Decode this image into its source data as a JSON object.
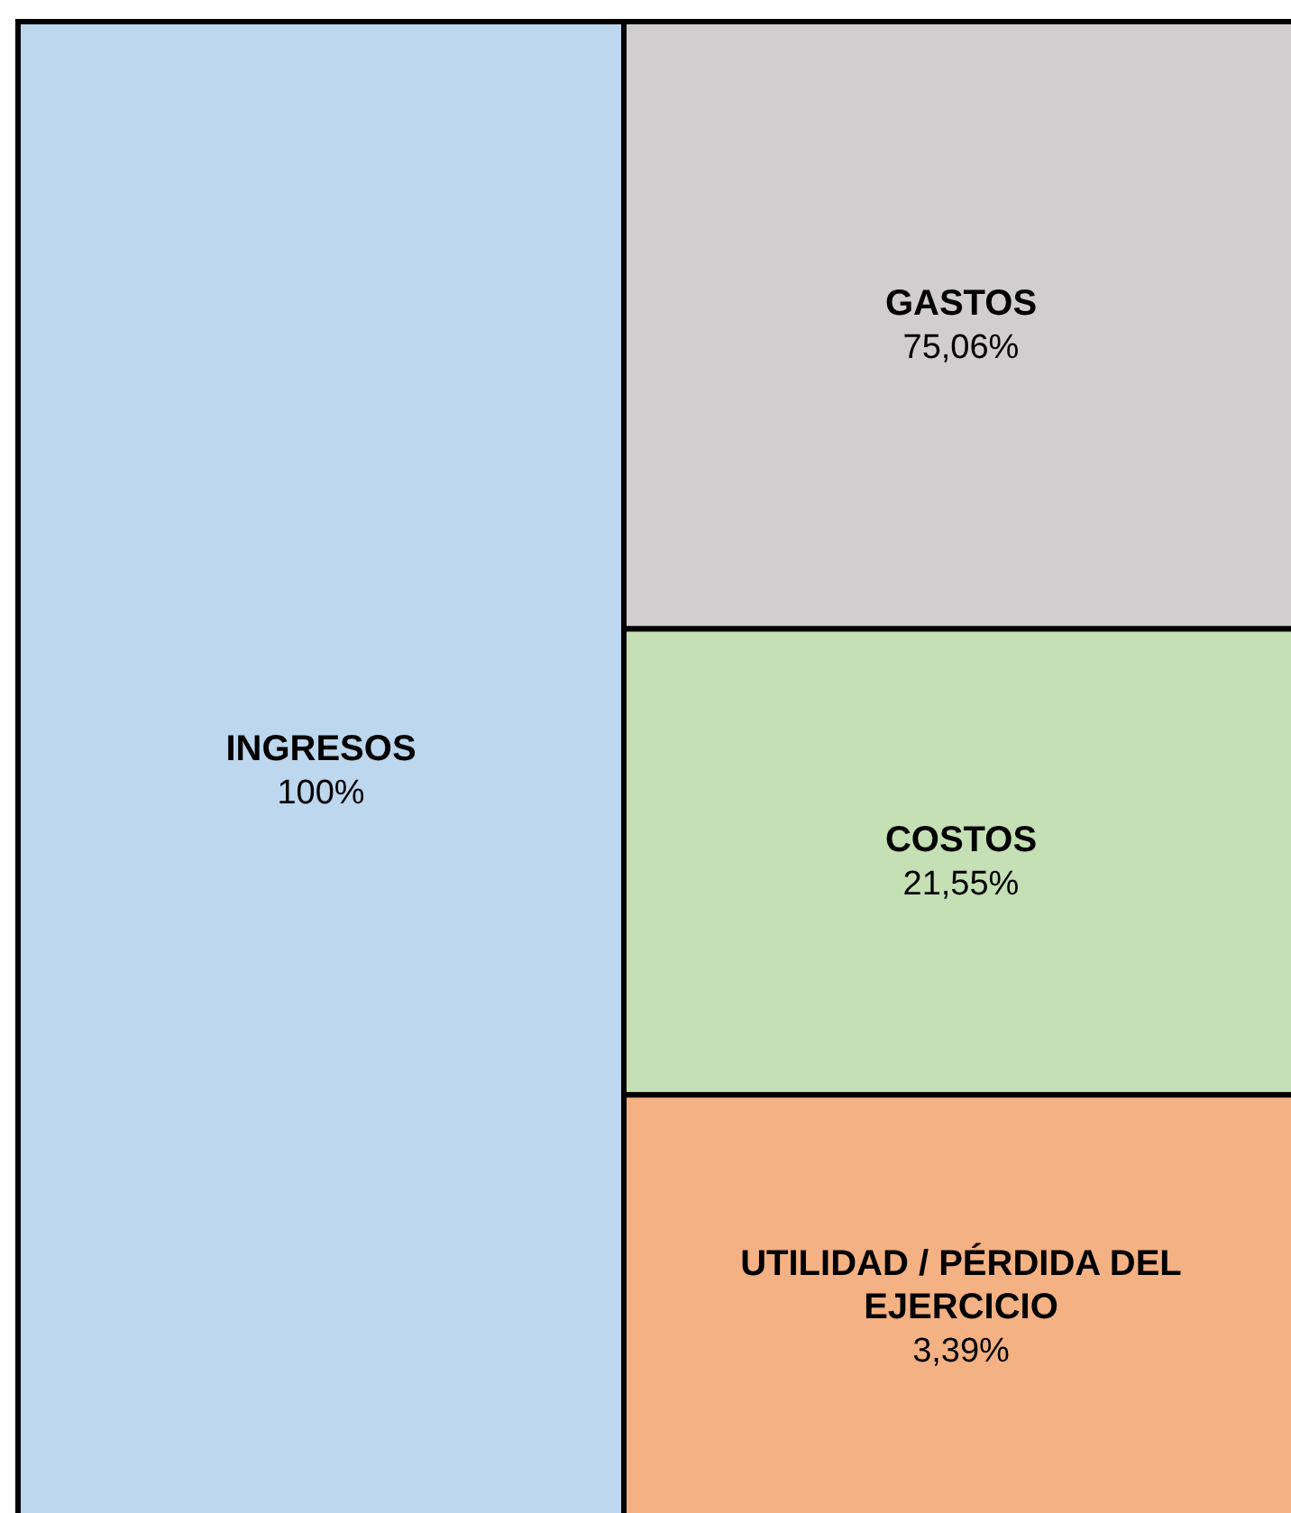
{
  "chart_data": {
    "type": "other",
    "categories": [
      "INGRESOS",
      "GASTOS",
      "COSTOS",
      "UTILIDAD / PÉRDIDA DEL EJERCICIO"
    ],
    "values": [
      100,
      75.06,
      21.55,
      3.39
    ],
    "value_labels": [
      "100%",
      "75,06%",
      "21,55%",
      "3,39%"
    ],
    "colors": [
      "#bdd7ee",
      "#d0cece",
      "#c5e0b4",
      "#f4b183"
    ]
  }
}
